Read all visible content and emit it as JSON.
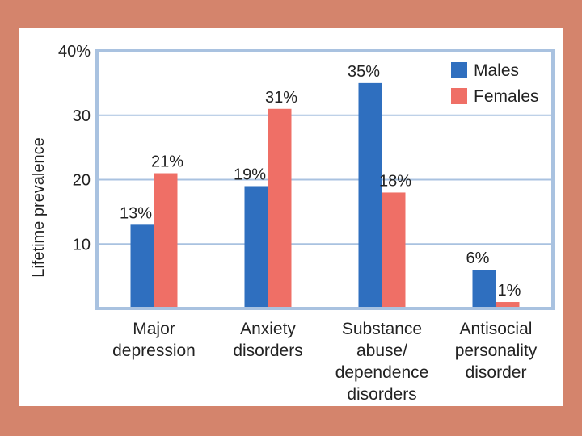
{
  "chart_data": {
    "type": "bar",
    "title": "",
    "ylabel": "Lifetime prevalence",
    "xlabel": "",
    "ylim": [
      0,
      40
    ],
    "yticks": [
      {
        "value": 10,
        "label": "10"
      },
      {
        "value": 20,
        "label": "20"
      },
      {
        "value": 30,
        "label": "30"
      },
      {
        "value": 40,
        "label": "40%"
      }
    ],
    "grid": true,
    "legend_position": "top-right",
    "categories": [
      [
        "Major",
        "depression"
      ],
      [
        "Anxiety",
        "disorders"
      ],
      [
        "Substance",
        "abuse/",
        "dependence",
        "disorders"
      ],
      [
        "Antisocial",
        "personality",
        "disorder"
      ]
    ],
    "series": [
      {
        "name": "Males",
        "color": "#2f6fbf",
        "values": [
          13,
          19,
          35,
          6
        ],
        "labels": [
          "13%",
          "19%",
          "35%",
          "6%"
        ]
      },
      {
        "name": "Females",
        "color": "#ef6f66",
        "values": [
          21,
          31,
          18,
          1
        ],
        "labels": [
          "21%",
          "31%",
          "18%",
          "1%"
        ]
      }
    ]
  },
  "colors": {
    "frame": "#d4846c",
    "panel": "#ffffff",
    "plot_border": "#a9c2e0",
    "grid": "#a9c2e0"
  }
}
